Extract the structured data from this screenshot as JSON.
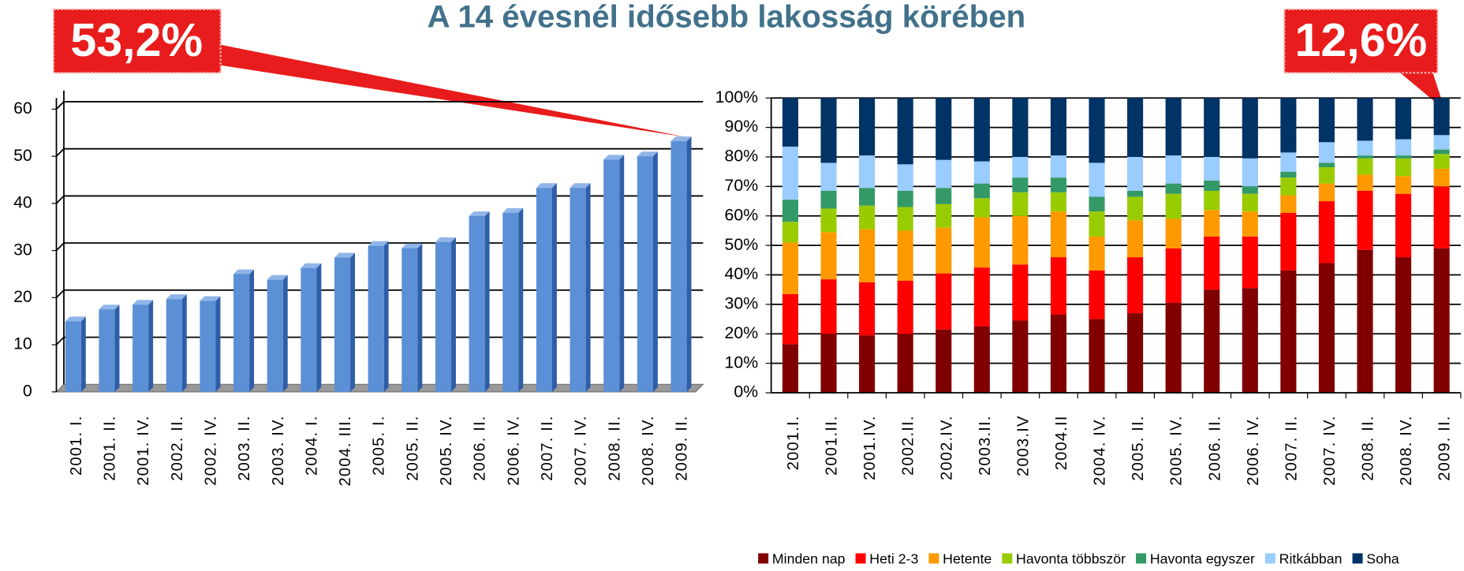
{
  "title": "A 14 évesnél idősebb lakosság körében",
  "chart_data": [
    {
      "type": "bar3d",
      "annotation": "53,2%",
      "categories": [
        "2001. I.",
        "2001. II.",
        "2001. IV.",
        "2002. II.",
        "2002. IV.",
        "2003. II.",
        "2003. IV.",
        "2004. I.",
        "2004. III.",
        "2005. I.",
        "2005. II.",
        "2005. IV.",
        "2006. II.",
        "2006. IV.",
        "2007. II.",
        "2007. IV.",
        "2008. II.",
        "2008. IV.",
        "2009. II."
      ],
      "values": [
        15,
        17.5,
        18.5,
        19.7,
        19.3,
        25,
        23.8,
        26.3,
        28.5,
        31,
        30.5,
        31.8,
        37.3,
        38,
        43.3,
        43.3,
        49.3,
        50,
        53.2
      ],
      "color": "#5b8fd6",
      "ylim": [
        0,
        60
      ],
      "yticks": [
        0,
        10,
        20,
        30,
        40,
        50,
        60
      ],
      "grid": true
    },
    {
      "type": "stacked_bar",
      "annotation": "12,6%",
      "categories": [
        "2001.I.",
        "2001.II.",
        "2001.IV.",
        "2002.II.",
        "2002.IV.",
        "2003.II.",
        "2003.IV",
        "2004.II",
        "2004. IV.",
        "2005. II.",
        "2005. IV.",
        "2006. II.",
        "2006. IV.",
        "2007. II.",
        "2007. IV.",
        "2008. II.",
        "2008. IV.",
        "2009. II."
      ],
      "series": [
        {
          "name": "Minden nap",
          "color": "#800000",
          "values": [
            16.5,
            20,
            19.5,
            20,
            21.5,
            22.5,
            24.5,
            26.5,
            25,
            27,
            30.5,
            35,
            35.5,
            41.5,
            44,
            48.5,
            46,
            49
          ]
        },
        {
          "name": "Heti 2-3",
          "color": "#ff0000",
          "values": [
            17,
            18.5,
            18,
            18,
            19,
            20,
            19,
            19.5,
            16.5,
            19,
            18.5,
            18,
            17.5,
            19.5,
            21,
            20,
            21.5,
            21
          ]
        },
        {
          "name": "Hetente",
          "color": "#ff9900",
          "values": [
            17.5,
            16,
            18,
            17,
            15.5,
            17,
            16.5,
            15.5,
            11.5,
            12.5,
            10,
            9,
            8.5,
            6,
            6,
            5.5,
            6,
            6
          ]
        },
        {
          "name": "Havonta többször",
          "color": "#99cc00",
          "values": [
            7,
            8,
            8,
            8,
            8,
            6.5,
            8,
            6.5,
            8.5,
            8,
            8.5,
            6.5,
            6,
            6,
            5.5,
            5.5,
            6,
            5
          ]
        },
        {
          "name": "Havonta egyszer",
          "color": "#339966",
          "values": [
            7.5,
            6,
            6,
            5.5,
            5.5,
            5,
            5,
            5,
            5,
            2,
            3.5,
            3.5,
            2.5,
            2,
            1.5,
            1,
            1,
            1.5
          ]
        },
        {
          "name": "Ritkábban",
          "color": "#99ccff",
          "values": [
            18,
            9.5,
            11,
            9,
            9.5,
            7.5,
            7,
            7.5,
            11.5,
            11.5,
            9.5,
            8,
            9.5,
            6.5,
            7,
            5,
            5.5,
            4.9
          ]
        },
        {
          "name": "Soha",
          "color": "#003366",
          "values": [
            16.5,
            22,
            19.5,
            22.5,
            21,
            21.5,
            20,
            19.5,
            22,
            20,
            19.5,
            20,
            20.5,
            18.5,
            15,
            14.5,
            14,
            12.6
          ]
        }
      ],
      "ylim": [
        0,
        100
      ],
      "yticks": [
        {
          "value": 0,
          "label": "0%"
        },
        {
          "value": 10,
          "label": "10%"
        },
        {
          "value": 20,
          "label": "20%"
        },
        {
          "value": 30,
          "label": "30%"
        },
        {
          "value": 40,
          "label": "40%"
        },
        {
          "value": 50,
          "label": "50%"
        },
        {
          "value": 60,
          "label": "60%"
        },
        {
          "value": 70,
          "label": "70%"
        },
        {
          "value": 80,
          "label": "80%"
        },
        {
          "value": 90,
          "label": "90%"
        },
        {
          "value": 100,
          "label": "100%"
        }
      ],
      "grid": true
    }
  ]
}
